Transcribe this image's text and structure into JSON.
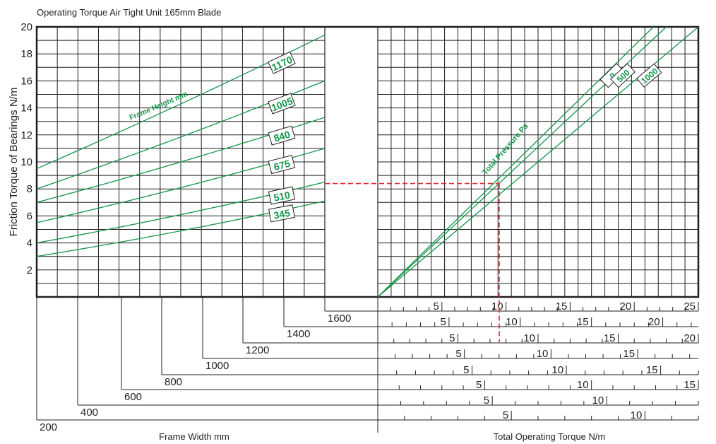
{
  "chart_data": {
    "type": "line",
    "title": "Operating Torque Air Tight Unit 165mm Blade",
    "ylabel": "Friction Torque of Bearings N/m",
    "y_ticks": [
      "2",
      "4",
      "6",
      "8",
      "10",
      "12",
      "14",
      "16",
      "18",
      "20"
    ],
    "ylim": [
      0,
      20
    ],
    "grid": true,
    "left_panel": {
      "annotation": "Frame Height mm",
      "series": [
        {
          "name": "1170",
          "y_start": 9.5,
          "y_end": 19.4
        },
        {
          "name": "1005",
          "y_start": 8.0,
          "y_end": 16.0
        },
        {
          "name": "840",
          "y_start": 7.0,
          "y_end": 13.3
        },
        {
          "name": "675",
          "y_start": 5.5,
          "y_end": 11.0
        },
        {
          "name": "510",
          "y_start": 4.0,
          "y_end": 8.5
        },
        {
          "name": "345",
          "y_start": 3.0,
          "y_end": 7.1
        }
      ]
    },
    "right_panel": {
      "annotation": "Total Pressure Pa",
      "series": [
        {
          "name": "0",
          "y_end": 20.0,
          "end_fraction": 0.86
        },
        {
          "name": "500",
          "y_end": 20.0,
          "end_fraction": 0.9
        },
        {
          "name": "1000",
          "y_end": 20.0,
          "end_fraction": 1.0
        }
      ]
    },
    "frame_width": {
      "xlabel": "Frame Width mm",
      "labels": [
        "200",
        "400",
        "600",
        "800",
        "1000",
        "1200",
        "1400",
        "1600"
      ]
    },
    "operating_torque_scales": {
      "xlabel": "Total Operating Torque N/m",
      "scales": [
        {
          "frame_width": "1600",
          "max": 25,
          "labels": [
            "5",
            "10",
            "15",
            "20",
            "25"
          ]
        },
        {
          "frame_width": "1400",
          "max": 22.5,
          "labels": [
            "5",
            "10",
            "15",
            "20"
          ]
        },
        {
          "frame_width": "1200",
          "max": 20,
          "labels": [
            "5",
            "10",
            "15",
            "20"
          ]
        },
        {
          "frame_width": "1000",
          "max": 18.5,
          "labels": [
            "5",
            "10",
            "15"
          ]
        },
        {
          "frame_width": "800",
          "max": 17,
          "labels": [
            "5",
            "10",
            "15"
          ]
        },
        {
          "frame_width": "600",
          "max": 15,
          "labels": [
            "5",
            "10",
            "15"
          ]
        },
        {
          "frame_width": "400",
          "max": 14,
          "labels": [
            "5",
            "10"
          ]
        },
        {
          "frame_width": "200",
          "max": 12,
          "labels": [
            "5",
            "10"
          ]
        }
      ]
    },
    "example_reading": {
      "friction_torque": 8.4
    },
    "colors": {
      "curves": "#13964a",
      "grid": "#231f20",
      "example": "#e8262d",
      "text": "#231f20"
    }
  }
}
